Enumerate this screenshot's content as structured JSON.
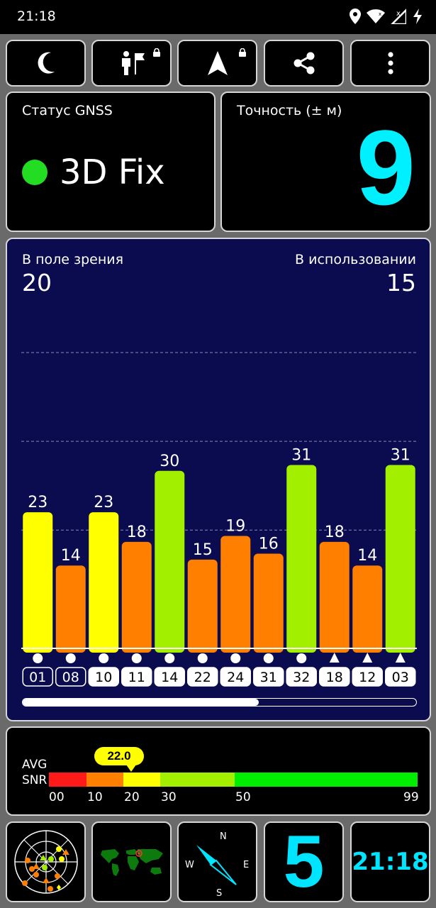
{
  "status_bar": {
    "time": "21:18"
  },
  "toolbar": {
    "buttons": [
      {
        "name": "night-mode",
        "icon": "moon-icon"
      },
      {
        "name": "location-sharing",
        "icon": "person-flag-icon",
        "locked": true
      },
      {
        "name": "navigation",
        "icon": "navigation-arrow-icon",
        "locked": true
      },
      {
        "name": "share",
        "icon": "share-icon"
      },
      {
        "name": "more",
        "icon": "more-vert-icon"
      }
    ]
  },
  "gnss_status": {
    "title": "Статус GNSS",
    "value": "3D Fix",
    "indicator_color": "#22dd22"
  },
  "accuracy": {
    "title": "Точность (± м)",
    "value": "9",
    "color": "#00f0ff"
  },
  "satellites": {
    "in_view_label": "В поле зрения",
    "in_view_value": "20",
    "in_use_label": "В использовании",
    "in_use_value": "15",
    "scroll_fraction": 0.6
  },
  "chart_data": {
    "type": "bar",
    "categories": [
      "01",
      "08",
      "10",
      "11",
      "14",
      "22",
      "24",
      "31",
      "32",
      "18",
      "12",
      "03"
    ],
    "values": [
      23,
      14,
      23,
      18,
      30,
      15,
      19,
      16,
      31,
      18,
      14,
      31
    ],
    "markers": [
      "circle",
      "circle",
      "circle",
      "circle",
      "circle",
      "circle",
      "circle",
      "circle",
      "circle",
      "triangle",
      "triangle",
      "triangle"
    ],
    "in_use": [
      false,
      false,
      true,
      true,
      true,
      true,
      true,
      true,
      true,
      true,
      true,
      true
    ],
    "ylim": [
      0,
      50
    ],
    "gridlines": [
      20,
      35,
      50
    ],
    "color_scale": {
      "red": "#ff1a1a",
      "orange": "#ff7f00",
      "yellow": "#ffff00",
      "yellowgreen": "#a2ef00",
      "green": "#00ee00"
    }
  },
  "snr": {
    "avg_label": "AVG",
    "snr_label": "SNR",
    "avg_value": "22.0",
    "ticks": [
      "00",
      "10",
      "20",
      "30",
      "50",
      "99"
    ]
  },
  "bottom": {
    "sat_count": "5",
    "clock": "21:18"
  },
  "compass": {
    "n": "N",
    "e": "E",
    "s": "S",
    "w": "W"
  }
}
